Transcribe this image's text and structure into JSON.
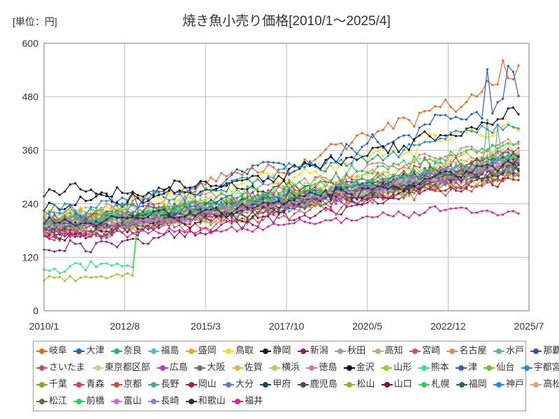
{
  "chart_data": {
    "type": "line",
    "title": "焼き魚小売り価格[2010/1～2025/4]",
    "unit_label": "[単位：円]",
    "xlabel": "",
    "ylabel": "",
    "x_tick_labels": [
      "2010/1",
      "2012/8",
      "2015/3",
      "2017/10",
      "2020/5",
      "2022/12",
      "2025/7"
    ],
    "x_tick_values": [
      2010.0,
      2012.583,
      2015.167,
      2017.75,
      2020.333,
      2022.917,
      2025.5
    ],
    "xlim": [
      2010.0,
      2025.5
    ],
    "x_end": 2025.25,
    "y_tick_labels": [
      "0",
      "120",
      "240",
      "360",
      "480",
      "600"
    ],
    "ylim": [
      0,
      600
    ],
    "grid": true,
    "legend_position": "bottom",
    "series": [
      {
        "name": "岐阜",
        "color": "#f26522",
        "start": 200,
        "end": 520,
        "noise": 20,
        "spike": 565
      },
      {
        "name": "大津",
        "color": "#1f5fd6",
        "start": 215,
        "end": 480,
        "noise": 22,
        "spike": 550
      },
      {
        "name": "奈良",
        "color": "#20b28a",
        "start": 180,
        "end": 330,
        "noise": 18
      },
      {
        "name": "福島",
        "color": "#5ab4e5",
        "start": 190,
        "end": 340,
        "noise": 18
      },
      {
        "name": "盛岡",
        "color": "#f7a21b",
        "start": 200,
        "end": 360,
        "noise": 18
      },
      {
        "name": "鳥取",
        "color": "#f5e10a",
        "start": 210,
        "end": 420,
        "noise": 20
      },
      {
        "name": "静岡",
        "color": "#1a1a1a",
        "start": 265,
        "end": 300,
        "noise": 15
      },
      {
        "name": "新潟",
        "color": "#8b1a8b",
        "start": 140,
        "end": 310,
        "noise": 16
      },
      {
        "name": "秋田",
        "color": "#9aa0a6",
        "start": 200,
        "end": 320,
        "noise": 18
      },
      {
        "name": "高知",
        "color": "#c8a882",
        "start": 190,
        "end": 350,
        "noise": 18
      },
      {
        "name": "宮崎",
        "color": "#d4574a",
        "start": 170,
        "end": 300,
        "noise": 16
      },
      {
        "name": "名古屋",
        "color": "#e0866a",
        "start": 210,
        "end": 380,
        "noise": 18
      },
      {
        "name": "水戸",
        "color": "#5fba7d",
        "start": 200,
        "end": 310,
        "noise": 18,
        "spike": 430
      },
      {
        "name": "那覇",
        "color": "#3b4ea8",
        "start": 180,
        "end": 330,
        "noise": 18
      },
      {
        "name": "さいたま",
        "color": "#c0506e",
        "start": 190,
        "end": 340,
        "noise": 16
      },
      {
        "name": "東京都区部",
        "color": "#b9d98a",
        "start": 210,
        "end": 360,
        "noise": 16
      },
      {
        "name": "広島",
        "color": "#b43fc8",
        "start": 180,
        "end": 320,
        "noise": 18
      },
      {
        "name": "大阪",
        "color": "#7d6b73",
        "start": 200,
        "end": 330,
        "noise": 18
      },
      {
        "name": "佐賀",
        "color": "#e2b24e",
        "start": 190,
        "end": 350,
        "noise": 18
      },
      {
        "name": "横浜",
        "color": "#9ed36a",
        "start": 210,
        "end": 340,
        "noise": 16
      },
      {
        "name": "徳島",
        "color": "#cf7ab0",
        "start": 180,
        "end": 330,
        "noise": 18
      },
      {
        "name": "金沢",
        "color": "#0d0d0d",
        "start": 230,
        "end": 440,
        "noise": 20
      },
      {
        "name": "山形",
        "color": "#8fd11f",
        "start": 80,
        "end": 300,
        "noise": 14,
        "jump_at": 2013.0,
        "jump_to": 200
      },
      {
        "name": "熊本",
        "color": "#2fe39a",
        "start": 100,
        "end": 320,
        "noise": 14,
        "jump_at": 2013.0,
        "jump_to": 210
      },
      {
        "name": "津",
        "color": "#3d55d9",
        "start": 200,
        "end": 350,
        "noise": 18
      },
      {
        "name": "仙台",
        "color": "#72c22a",
        "start": 180,
        "end": 310,
        "noise": 16
      },
      {
        "name": "宇都宮",
        "color": "#2f86d1",
        "start": 190,
        "end": 340,
        "noise": 16
      },
      {
        "name": "千葉",
        "color": "#8aa61e",
        "start": 200,
        "end": 330,
        "noise": 16
      },
      {
        "name": "青森",
        "color": "#e23b5a",
        "start": 170,
        "end": 310,
        "noise": 18
      },
      {
        "name": "京都",
        "color": "#d14b3c",
        "start": 200,
        "end": 360,
        "noise": 18
      },
      {
        "name": "長野",
        "color": "#3fae8f",
        "start": 190,
        "end": 340,
        "noise": 18
      },
      {
        "name": "岡山",
        "color": "#b01e2e",
        "start": 180,
        "end": 300,
        "noise": 16
      },
      {
        "name": "大分",
        "color": "#6675c9",
        "start": 190,
        "end": 320,
        "noise": 16
      },
      {
        "name": "甲府",
        "color": "#0f4c6b",
        "start": 185,
        "end": 330,
        "noise": 16
      },
      {
        "name": "鹿児島",
        "color": "#6b3a5a",
        "start": 175,
        "end": 320,
        "noise": 18
      },
      {
        "name": "松山",
        "color": "#b5a23a",
        "start": 190,
        "end": 330,
        "noise": 16
      },
      {
        "name": "山口",
        "color": "#7a1020",
        "start": 170,
        "end": 320,
        "noise": 16
      },
      {
        "name": "札幌",
        "color": "#31cf58",
        "start": 200,
        "end": 380,
        "noise": 18
      },
      {
        "name": "福岡",
        "color": "#266b4a",
        "start": 190,
        "end": 340,
        "noise": 16
      },
      {
        "name": "神戸",
        "color": "#1e8fe0",
        "start": 220,
        "end": 420,
        "noise": 18
      },
      {
        "name": "高松",
        "color": "#d9a77a",
        "start": 180,
        "end": 330,
        "noise": 16
      },
      {
        "name": "松江",
        "color": "#6b6b4a",
        "start": 170,
        "end": 320,
        "noise": 16
      },
      {
        "name": "前橋",
        "color": "#1ed84a",
        "start": 200,
        "end": 350,
        "noise": 16
      },
      {
        "name": "富山",
        "color": "#c86be0",
        "start": 180,
        "end": 330,
        "noise": 16
      },
      {
        "name": "長崎",
        "color": "#9a80c8",
        "start": 190,
        "end": 340,
        "noise": 16
      },
      {
        "name": "和歌山",
        "color": "#2a2a5a",
        "start": 190,
        "end": 330,
        "noise": 16
      },
      {
        "name": "福井",
        "color": "#e01e9a",
        "start": 170,
        "end": 230,
        "noise": 12
      }
    ]
  }
}
